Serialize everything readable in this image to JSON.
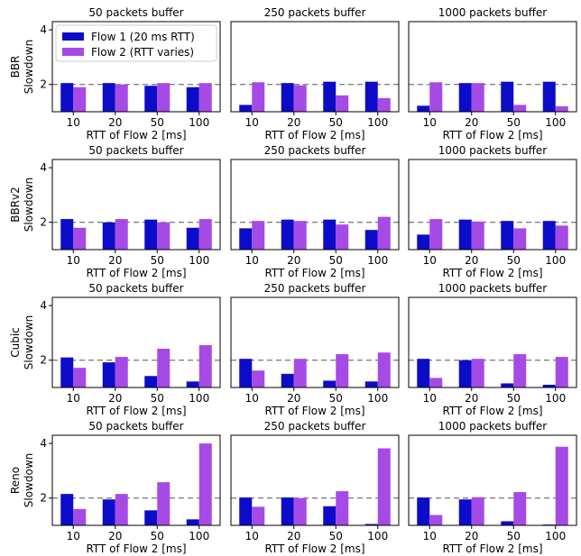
{
  "figure": {
    "row_ylabels": [
      "BBR",
      "BBRv2",
      "Cubic",
      "Reno"
    ],
    "row_ylabel_line2": "Slowdown",
    "col_titles": [
      "50 packets buffer",
      "250 packets buffer",
      "1000 packets buffer"
    ],
    "xlabel": "RTT of Flow 2 [ms]",
    "legend": [
      "Flow 1 (20 ms RTT)",
      "Flow 2 (RTT varies)"
    ]
  },
  "chart_data": {
    "type": "bar",
    "categories": [
      "10",
      "20",
      "50",
      "100"
    ],
    "xlabel": "RTT of Flow 2 [ms]",
    "ylim": [
      1,
      4.3
    ],
    "yticks": [
      2,
      4
    ],
    "reference_line": 2,
    "colors": {
      "flow1": "#0c0cc8",
      "flow2": "#a64ae6"
    },
    "legend_placement": "upper-left of first panel",
    "series_names": [
      "Flow 1 (20 ms RTT)",
      "Flow 2 (RTT varies)"
    ],
    "panels": [
      {
        "row": "BBR",
        "title": "50 packets buffer",
        "flow1": [
          2.05,
          2.05,
          1.95,
          1.9
        ],
        "flow2": [
          1.9,
          2.0,
          2.05,
          2.05
        ]
      },
      {
        "row": "BBR",
        "title": "250 packets buffer",
        "flow1": [
          1.25,
          2.05,
          2.1,
          2.1
        ],
        "flow2": [
          2.08,
          1.97,
          1.6,
          1.5
        ]
      },
      {
        "row": "BBR",
        "title": "1000 packets buffer",
        "flow1": [
          1.22,
          2.05,
          2.1,
          2.1
        ],
        "flow2": [
          2.08,
          2.05,
          1.25,
          1.2
        ]
      },
      {
        "row": "BBRv2",
        "title": "50 packets buffer",
        "flow1": [
          2.12,
          2.0,
          2.1,
          1.8
        ],
        "flow2": [
          1.8,
          2.12,
          2.0,
          2.12
        ]
      },
      {
        "row": "BBRv2",
        "title": "250 packets buffer",
        "flow1": [
          1.78,
          2.1,
          2.1,
          1.72
        ],
        "flow2": [
          2.05,
          2.05,
          1.92,
          2.2
        ]
      },
      {
        "row": "BBRv2",
        "title": "1000 packets buffer",
        "flow1": [
          1.55,
          2.1,
          2.05,
          2.05
        ],
        "flow2": [
          2.12,
          2.03,
          1.78,
          1.88
        ]
      },
      {
        "row": "Cubic",
        "title": "50 packets buffer",
        "flow1": [
          2.1,
          1.92,
          1.42,
          1.22
        ],
        "flow2": [
          1.72,
          2.12,
          2.42,
          2.55
        ]
      },
      {
        "row": "Cubic",
        "title": "250 packets buffer",
        "flow1": [
          2.05,
          1.5,
          1.25,
          1.22
        ],
        "flow2": [
          1.62,
          2.05,
          2.22,
          2.28
        ]
      },
      {
        "row": "Cubic",
        "title": "1000 packets buffer",
        "flow1": [
          2.05,
          2.0,
          1.15,
          1.1
        ],
        "flow2": [
          1.35,
          2.05,
          2.22,
          2.12
        ]
      },
      {
        "row": "Reno",
        "title": "50 packets buffer",
        "flow1": [
          2.15,
          1.95,
          1.55,
          1.22
        ],
        "flow2": [
          1.6,
          2.15,
          2.58,
          4.0
        ]
      },
      {
        "row": "Reno",
        "title": "250 packets buffer",
        "flow1": [
          2.02,
          2.02,
          1.7,
          1.05
        ],
        "flow2": [
          1.68,
          2.0,
          2.25,
          3.82
        ]
      },
      {
        "row": "Reno",
        "title": "1000 packets buffer",
        "flow1": [
          2.02,
          1.95,
          1.15,
          1.03
        ],
        "flow2": [
          1.38,
          2.03,
          2.22,
          3.88
        ]
      }
    ]
  }
}
